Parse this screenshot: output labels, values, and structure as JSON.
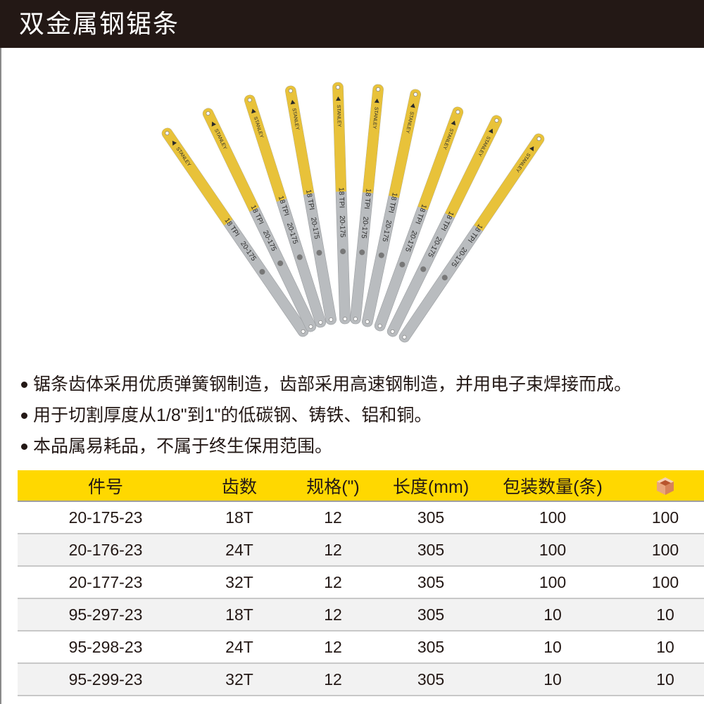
{
  "header": {
    "title": "双金属钢锯条"
  },
  "product_image": {
    "blade_count": 10,
    "colors": {
      "yellow": "#e8c23a",
      "gray": "#b9bcbf",
      "ink": "#2a2a2a"
    },
    "blade_text": {
      "brand": "STANLEY",
      "tpi": "18 TPI",
      "model": "20-175"
    }
  },
  "features": [
    "锯条齿体采用优质弹簧钢制造，齿部采用高速钢制造，并用电子束焊接而成。",
    "用于切割厚度从1/8\"到1\"的低碳钢、铸铁、铝和铜。",
    "本品属易耗品，不属于终生保用范围。"
  ],
  "table": {
    "header_color": "#ffd800",
    "columns": [
      "件号",
      "齿数",
      "规格(\")",
      "长度(mm)",
      "包装数量(条)",
      ""
    ],
    "last_column_icon": "box-icon",
    "rows": [
      [
        "20-175-23",
        "18T",
        "12",
        "305",
        "100",
        "100"
      ],
      [
        "20-176-23",
        "24T",
        "12",
        "305",
        "100",
        "100"
      ],
      [
        "20-177-23",
        "32T",
        "12",
        "305",
        "100",
        "100"
      ],
      [
        "95-297-23",
        "18T",
        "12",
        "305",
        "10",
        "10"
      ],
      [
        "95-298-23",
        "24T",
        "12",
        "305",
        "10",
        "10"
      ],
      [
        "95-299-23",
        "32T",
        "12",
        "305",
        "10",
        "10"
      ]
    ]
  }
}
